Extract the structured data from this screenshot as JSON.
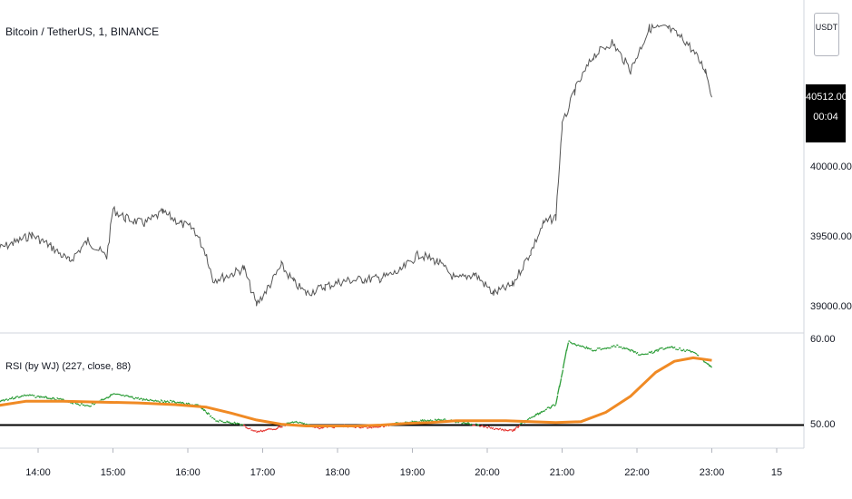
{
  "header": {
    "symbol_title": "Bitcoin / TetherUS, 1, BINANCE",
    "currency_button": "USDT"
  },
  "price_badge": {
    "price": "40512.00",
    "countdown": "00:04"
  },
  "indicator": {
    "title": "RSI (by WJ) (227, close, 88)"
  },
  "chart_data": [
    {
      "type": "line",
      "title": "Bitcoin / TetherUS, 1, BINANCE",
      "xlabel": "",
      "ylabel": "",
      "x_ticks": [
        "14:00",
        "15:00",
        "16:00",
        "17:00",
        "18:00",
        "19:00",
        "20:00",
        "21:00",
        "22:00",
        "23:00",
        "15"
      ],
      "y_ticks": [
        "40000.00",
        "39500.00",
        "39000.00"
      ],
      "ylim": [
        38850,
        41150
      ],
      "last_price": 40512.0,
      "series": [
        {
          "color": "#555555",
          "x": [
            "13:28",
            "13:40",
            "13:55",
            "14:10",
            "14:25",
            "14:40",
            "14:55",
            "15:00",
            "15:10",
            "15:25",
            "15:40",
            "15:55",
            "16:05",
            "16:15",
            "16:20",
            "16:30",
            "16:45",
            "16:55",
            "17:05",
            "17:15",
            "17:25",
            "17:35",
            "17:50",
            "18:05",
            "18:20",
            "18:35",
            "18:50",
            "19:05",
            "19:20",
            "19:35",
            "19:50",
            "20:05",
            "20:20",
            "20:35",
            "20:45",
            "20:55",
            "21:00",
            "21:10",
            "21:25",
            "21:40",
            "21:55",
            "22:10",
            "22:25",
            "22:40",
            "22:55",
            "23:00"
          ],
          "y": [
            39420,
            39460,
            39520,
            39440,
            39330,
            39480,
            39360,
            39700,
            39640,
            39600,
            39680,
            39600,
            39560,
            39380,
            39200,
            39220,
            39280,
            39020,
            39150,
            39300,
            39180,
            39100,
            39150,
            39190,
            39200,
            39210,
            39260,
            39380,
            39330,
            39200,
            39240,
            39100,
            39160,
            39400,
            39600,
            39650,
            40300,
            40550,
            40800,
            40900,
            40700,
            41000,
            41000,
            40900,
            40700,
            40520
          ]
        }
      ]
    },
    {
      "type": "line",
      "title": "RSI (by WJ) (227, close, 88)",
      "xlabel": "",
      "ylabel": "",
      "y_ticks": [
        "60.00",
        "50.00"
      ],
      "ylim": [
        47.5,
        60.5
      ],
      "threshold": 50,
      "series": [
        {
          "color": "#2e9e3a",
          "x": [
            "13:28",
            "13:50",
            "14:15",
            "14:40",
            "15:00",
            "15:25",
            "15:50",
            "16:10",
            "16:22",
            "16:40",
            "16:55",
            "17:10",
            "17:25",
            "17:45",
            "18:05",
            "18:25",
            "18:45",
            "19:05",
            "19:25",
            "19:45",
            "20:05",
            "20:20",
            "20:35",
            "20:55",
            "21:05",
            "21:25",
            "21:45",
            "22:05",
            "22:25",
            "22:45",
            "23:00"
          ],
          "y": [
            52.8,
            53.5,
            53.1,
            52.2,
            53.6,
            53.0,
            52.7,
            52.2,
            50.5,
            50.2,
            49.2,
            49.6,
            50.4,
            49.7,
            49.9,
            49.7,
            50.1,
            50.5,
            50.6,
            50.2,
            49.6,
            49.3,
            50.9,
            52.4,
            59.8,
            58.8,
            59.3,
            58.2,
            59.2,
            58.6,
            56.8
          ]
        },
        {
          "color": "#f08a24",
          "x": [
            "13:28",
            "13:50",
            "14:20",
            "14:50",
            "15:20",
            "15:50",
            "16:15",
            "16:35",
            "16:55",
            "17:15",
            "17:35",
            "17:55",
            "18:15",
            "18:35",
            "18:55",
            "19:15",
            "19:35",
            "19:55",
            "20:15",
            "20:35",
            "20:55",
            "21:15",
            "21:35",
            "21:55",
            "22:15",
            "22:30",
            "22:45",
            "23:00"
          ],
          "y": [
            52.3,
            52.8,
            52.8,
            52.7,
            52.6,
            52.4,
            52.1,
            51.4,
            50.6,
            50.1,
            49.9,
            49.9,
            49.9,
            50.0,
            50.2,
            50.3,
            50.5,
            50.5,
            50.5,
            50.4,
            50.3,
            50.4,
            51.5,
            53.4,
            56.2,
            57.5,
            57.9,
            57.6
          ]
        }
      ]
    }
  ]
}
